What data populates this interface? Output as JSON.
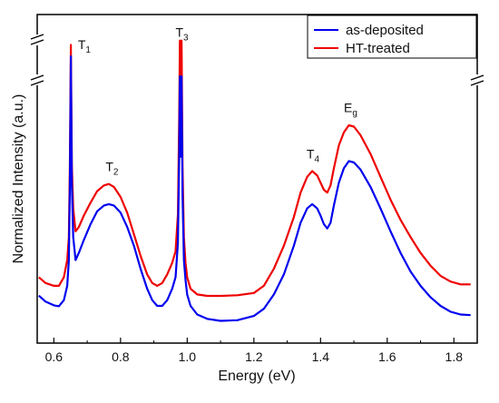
{
  "chart_data": {
    "type": "line",
    "title": "",
    "xlabel": "Energy (eV)",
    "ylabel": "Normalized Intensity (a.u.)",
    "xlim": [
      0.55,
      1.87
    ],
    "ylim": [
      0,
      1
    ],
    "x_ticks": [
      "0.6",
      "0.8",
      "1.0",
      "1.2",
      "1.4",
      "1.6",
      "1.8"
    ],
    "x_tick_values": [
      0.6,
      0.8,
      1.0,
      1.2,
      1.4,
      1.6,
      1.8
    ],
    "y_axis_break": true,
    "legend_position": "top-right",
    "series": [
      {
        "name": "as-deposited",
        "color": "#0000ee",
        "points": [
          [
            0.555,
            0.096
          ],
          [
            0.575,
            0.075
          ],
          [
            0.6,
            0.062
          ],
          [
            0.615,
            0.059
          ],
          [
            0.63,
            0.08
          ],
          [
            0.64,
            0.13
          ],
          [
            0.645,
            0.22
          ],
          [
            0.648,
            0.48
          ],
          [
            0.651,
            0.93
          ],
          [
            0.654,
            0.48
          ],
          [
            0.658,
            0.3
          ],
          [
            0.665,
            0.22
          ],
          [
            0.675,
            0.245
          ],
          [
            0.69,
            0.29
          ],
          [
            0.71,
            0.345
          ],
          [
            0.73,
            0.39
          ],
          [
            0.75,
            0.41
          ],
          [
            0.765,
            0.415
          ],
          [
            0.78,
            0.41
          ],
          [
            0.8,
            0.385
          ],
          [
            0.82,
            0.335
          ],
          [
            0.84,
            0.27
          ],
          [
            0.86,
            0.19
          ],
          [
            0.88,
            0.12
          ],
          [
            0.895,
            0.08
          ],
          [
            0.91,
            0.06
          ],
          [
            0.925,
            0.06
          ],
          [
            0.94,
            0.08
          ],
          [
            0.955,
            0.12
          ],
          [
            0.965,
            0.16
          ],
          [
            0.972,
            0.28
          ],
          [
            0.976,
            0.58
          ],
          [
            0.978,
            0.86
          ],
          [
            0.98,
            0.58
          ],
          [
            0.983,
            0.86
          ],
          [
            0.986,
            0.45
          ],
          [
            0.99,
            0.22
          ],
          [
            0.995,
            0.15
          ],
          [
            1.0,
            0.1
          ],
          [
            1.01,
            0.06
          ],
          [
            1.03,
            0.03
          ],
          [
            1.06,
            0.015
          ],
          [
            1.1,
            0.008
          ],
          [
            1.15,
            0.01
          ],
          [
            1.2,
            0.025
          ],
          [
            1.23,
            0.05
          ],
          [
            1.26,
            0.1
          ],
          [
            1.29,
            0.17
          ],
          [
            1.32,
            0.27
          ],
          [
            1.34,
            0.35
          ],
          [
            1.36,
            0.4
          ],
          [
            1.375,
            0.415
          ],
          [
            1.39,
            0.4
          ],
          [
            1.4,
            0.375
          ],
          [
            1.41,
            0.345
          ],
          [
            1.42,
            0.33
          ],
          [
            1.43,
            0.35
          ],
          [
            1.44,
            0.41
          ],
          [
            1.455,
            0.49
          ],
          [
            1.47,
            0.54
          ],
          [
            1.485,
            0.565
          ],
          [
            1.5,
            0.56
          ],
          [
            1.52,
            0.535
          ],
          [
            1.55,
            0.475
          ],
          [
            1.58,
            0.4
          ],
          [
            1.61,
            0.32
          ],
          [
            1.64,
            0.245
          ],
          [
            1.67,
            0.18
          ],
          [
            1.7,
            0.13
          ],
          [
            1.73,
            0.09
          ],
          [
            1.76,
            0.06
          ],
          [
            1.79,
            0.04
          ],
          [
            1.82,
            0.03
          ],
          [
            1.85,
            0.028
          ]
        ]
      },
      {
        "name": "HT-treated",
        "color": "#ee0000",
        "points": [
          [
            0.555,
            0.16
          ],
          [
            0.575,
            0.14
          ],
          [
            0.6,
            0.13
          ],
          [
            0.615,
            0.13
          ],
          [
            0.63,
            0.16
          ],
          [
            0.64,
            0.22
          ],
          [
            0.645,
            0.3
          ],
          [
            0.648,
            0.55
          ],
          [
            0.651,
            0.97
          ],
          [
            0.654,
            0.55
          ],
          [
            0.658,
            0.4
          ],
          [
            0.665,
            0.32
          ],
          [
            0.675,
            0.335
          ],
          [
            0.69,
            0.375
          ],
          [
            0.71,
            0.42
          ],
          [
            0.73,
            0.46
          ],
          [
            0.75,
            0.48
          ],
          [
            0.765,
            0.485
          ],
          [
            0.78,
            0.475
          ],
          [
            0.8,
            0.44
          ],
          [
            0.82,
            0.385
          ],
          [
            0.84,
            0.31
          ],
          [
            0.86,
            0.235
          ],
          [
            0.88,
            0.17
          ],
          [
            0.895,
            0.14
          ],
          [
            0.91,
            0.13
          ],
          [
            0.925,
            0.14
          ],
          [
            0.94,
            0.17
          ],
          [
            0.955,
            0.21
          ],
          [
            0.965,
            0.25
          ],
          [
            0.972,
            0.38
          ],
          [
            0.976,
            0.72
          ],
          [
            0.978,
            0.985
          ],
          [
            0.98,
            0.72
          ],
          [
            0.983,
            0.985
          ],
          [
            0.986,
            0.55
          ],
          [
            0.99,
            0.3
          ],
          [
            0.995,
            0.21
          ],
          [
            1.0,
            0.16
          ],
          [
            1.01,
            0.12
          ],
          [
            1.03,
            0.1
          ],
          [
            1.06,
            0.095
          ],
          [
            1.1,
            0.095
          ],
          [
            1.15,
            0.097
          ],
          [
            1.2,
            0.105
          ],
          [
            1.23,
            0.13
          ],
          [
            1.26,
            0.19
          ],
          [
            1.29,
            0.27
          ],
          [
            1.32,
            0.37
          ],
          [
            1.34,
            0.455
          ],
          [
            1.36,
            0.51
          ],
          [
            1.375,
            0.53
          ],
          [
            1.39,
            0.515
          ],
          [
            1.4,
            0.49
          ],
          [
            1.41,
            0.465
          ],
          [
            1.42,
            0.455
          ],
          [
            1.43,
            0.48
          ],
          [
            1.44,
            0.54
          ],
          [
            1.455,
            0.62
          ],
          [
            1.47,
            0.665
          ],
          [
            1.485,
            0.69
          ],
          [
            1.5,
            0.685
          ],
          [
            1.52,
            0.655
          ],
          [
            1.55,
            0.59
          ],
          [
            1.58,
            0.51
          ],
          [
            1.61,
            0.43
          ],
          [
            1.64,
            0.36
          ],
          [
            1.67,
            0.3
          ],
          [
            1.7,
            0.245
          ],
          [
            1.73,
            0.2
          ],
          [
            1.76,
            0.165
          ],
          [
            1.79,
            0.145
          ],
          [
            1.82,
            0.135
          ],
          [
            1.85,
            0.135
          ]
        ]
      }
    ],
    "annotations": [
      {
        "main": "T",
        "sub": "1",
        "x": 0.672,
        "y": 0.955
      },
      {
        "main": "T",
        "sub": "3",
        "x": 0.965,
        "y": 0.998
      },
      {
        "main": "T",
        "sub": "2",
        "x": 0.755,
        "y": 0.53
      },
      {
        "main": "T",
        "sub": "4",
        "x": 1.358,
        "y": 0.575
      },
      {
        "main": "E",
        "sub": "g",
        "x": 1.47,
        "y": 0.735
      }
    ]
  }
}
